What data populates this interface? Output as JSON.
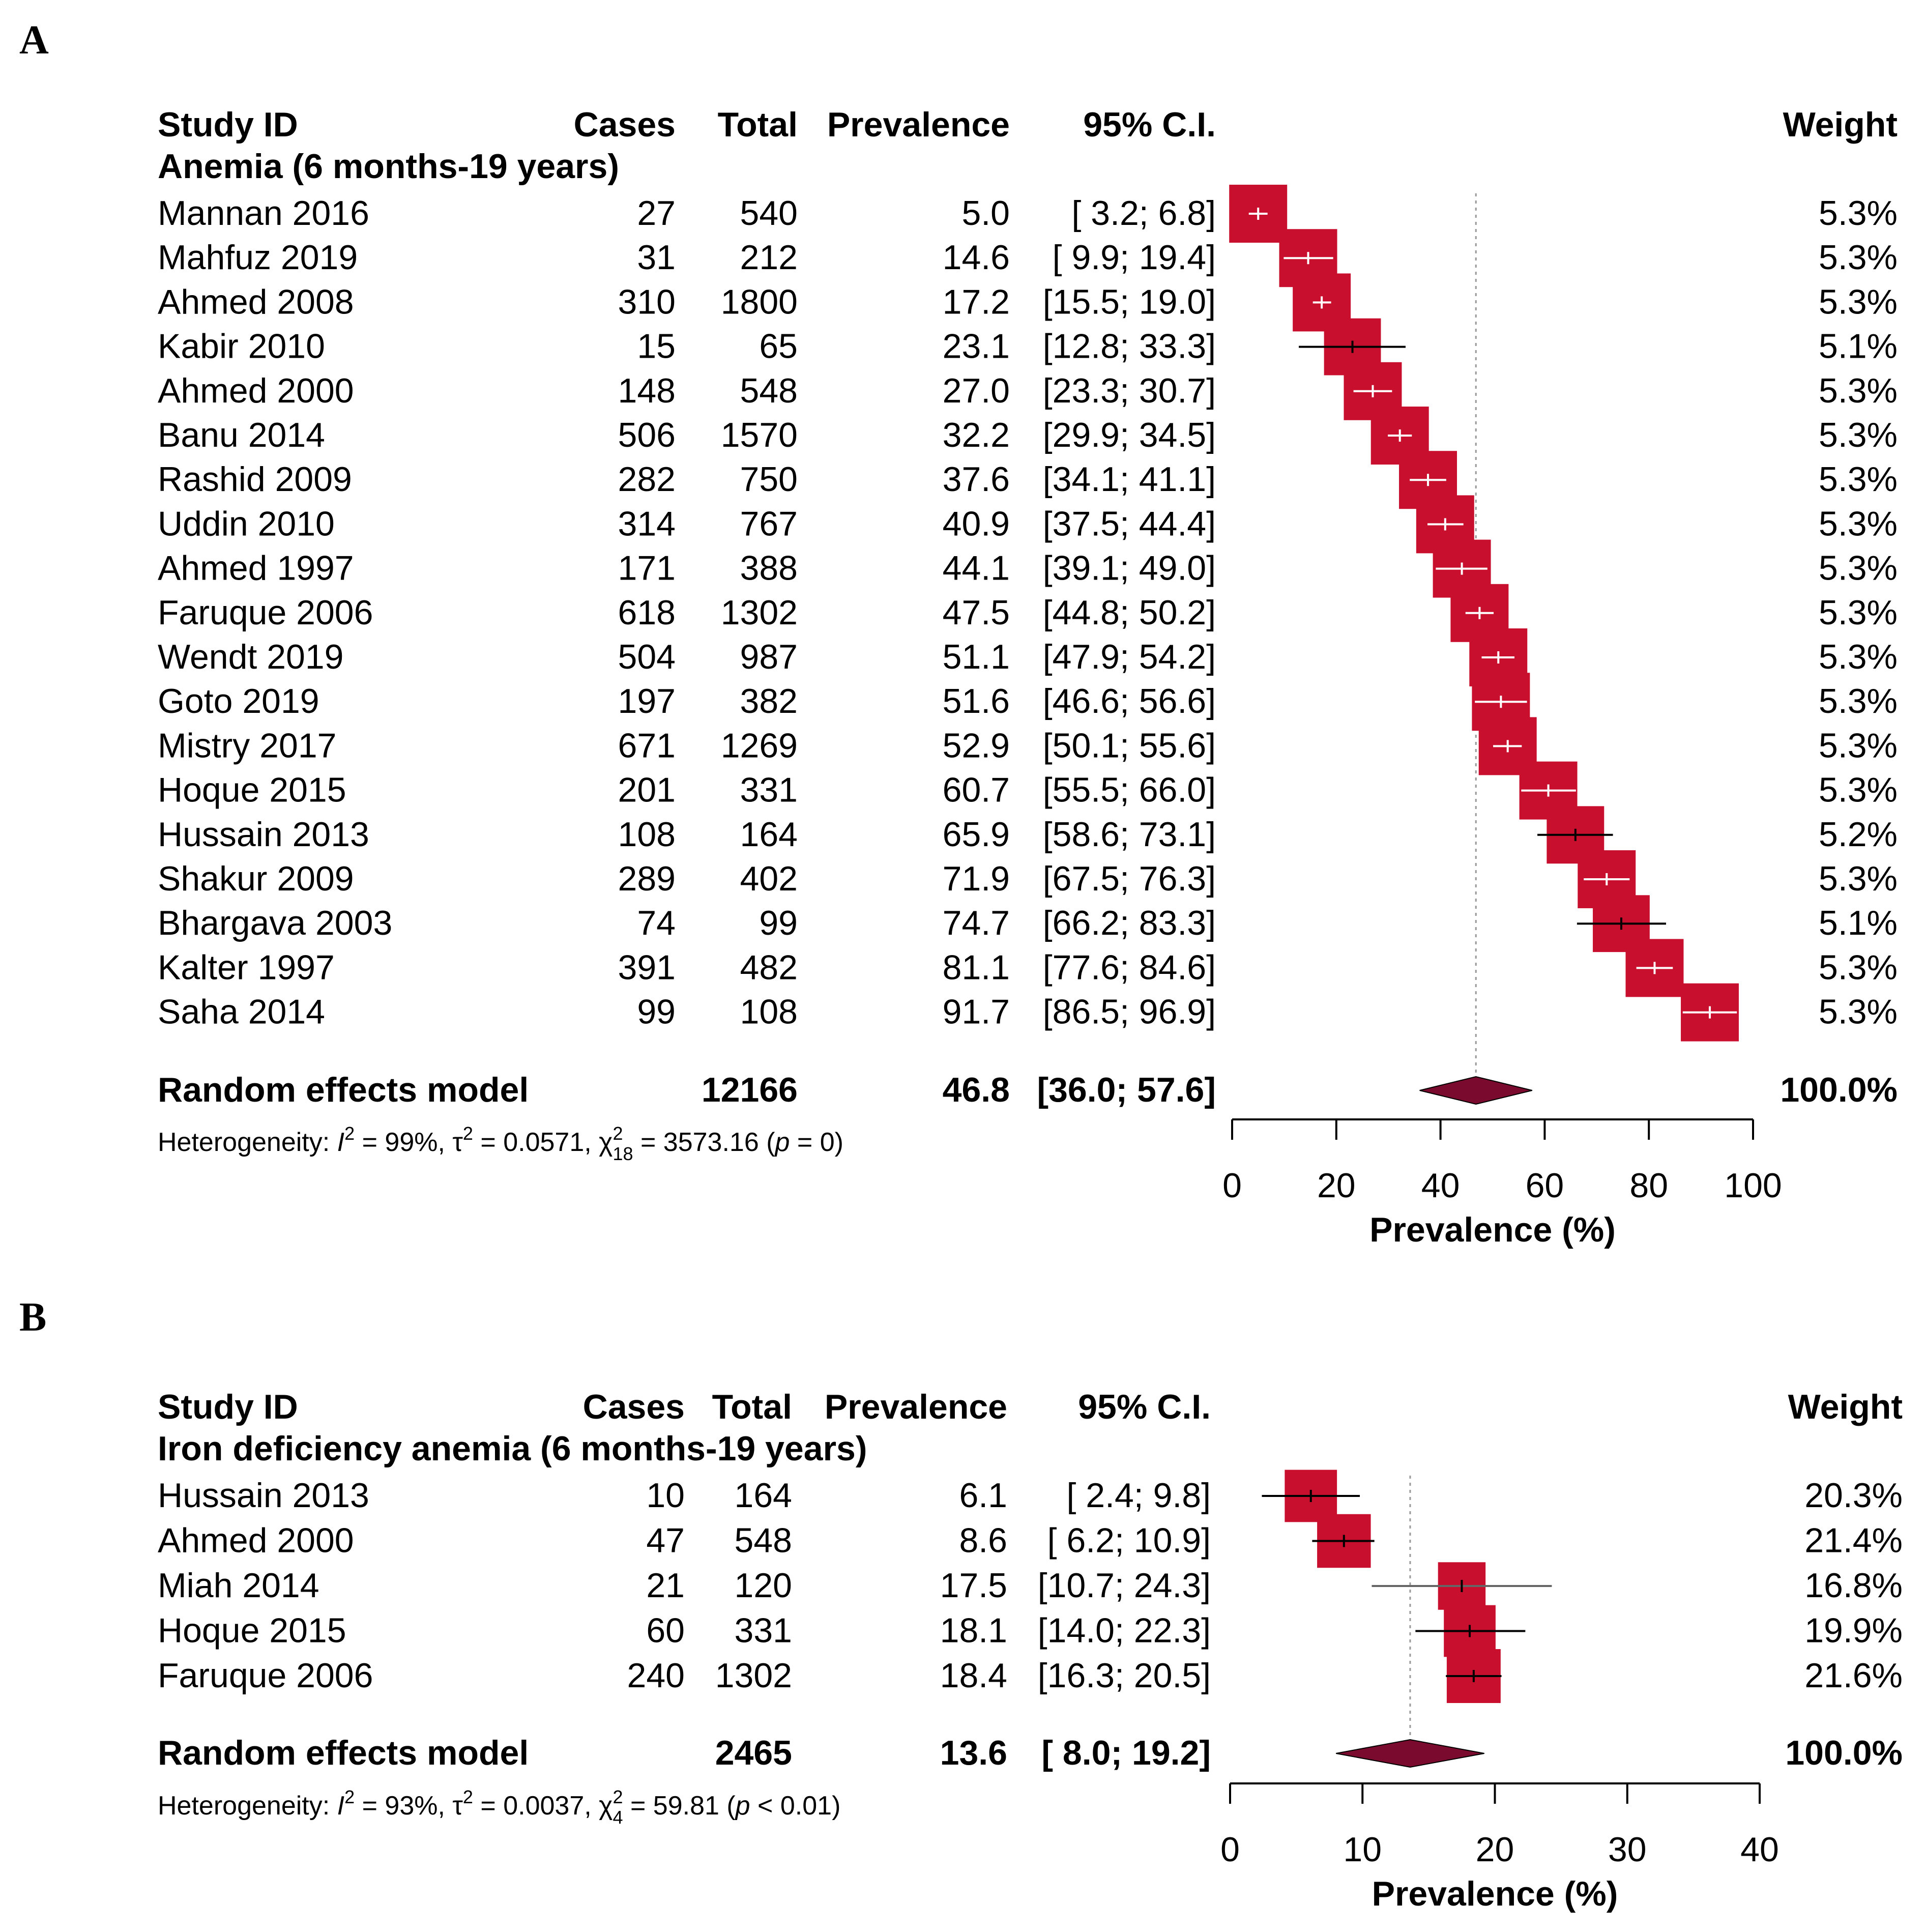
{
  "chart_data": [
    {
      "type": "forest",
      "panel_label": "A",
      "headers": {
        "study": "Study ID",
        "cases": "Cases",
        "total": "Total",
        "prevalence": "Prevalence",
        "ci": "95% C.I.",
        "weight": "Weight"
      },
      "subgroup_title": "Anemia (6 months-19 years)",
      "studies": [
        {
          "study": "Mannan 2016",
          "cases": "27",
          "total": "540",
          "prevalence": "5.0",
          "ci": "[ 3.2;  6.8]",
          "est": 5.0,
          "lo": 3.2,
          "hi": 6.8,
          "weight": "5.3%",
          "w": 5.3
        },
        {
          "study": "Mahfuz 2019",
          "cases": "31",
          "total": "212",
          "prevalence": "14.6",
          "ci": "[ 9.9; 19.4]",
          "est": 14.6,
          "lo": 9.9,
          "hi": 19.4,
          "weight": "5.3%",
          "w": 5.3
        },
        {
          "study": "Ahmed 2008",
          "cases": "310",
          "total": "1800",
          "prevalence": "17.2",
          "ci": "[15.5; 19.0]",
          "est": 17.2,
          "lo": 15.5,
          "hi": 19.0,
          "weight": "5.3%",
          "w": 5.3
        },
        {
          "study": "Kabir 2010",
          "cases": "15",
          "total": "65",
          "prevalence": "23.1",
          "ci": "[12.8; 33.3]",
          "est": 23.1,
          "lo": 12.8,
          "hi": 33.3,
          "weight": "5.1%",
          "w": 5.1
        },
        {
          "study": "Ahmed 2000",
          "cases": "148",
          "total": "548",
          "prevalence": "27.0",
          "ci": "[23.3; 30.7]",
          "est": 27.0,
          "lo": 23.3,
          "hi": 30.7,
          "weight": "5.3%",
          "w": 5.3
        },
        {
          "study": "Banu 2014",
          "cases": "506",
          "total": "1570",
          "prevalence": "32.2",
          "ci": "[29.9; 34.5]",
          "est": 32.2,
          "lo": 29.9,
          "hi": 34.5,
          "weight": "5.3%",
          "w": 5.3
        },
        {
          "study": "Rashid 2009",
          "cases": "282",
          "total": "750",
          "prevalence": "37.6",
          "ci": "[34.1; 41.1]",
          "est": 37.6,
          "lo": 34.1,
          "hi": 41.1,
          "weight": "5.3%",
          "w": 5.3
        },
        {
          "study": "Uddin 2010",
          "cases": "314",
          "total": "767",
          "prevalence": "40.9",
          "ci": "[37.5; 44.4]",
          "est": 40.9,
          "lo": 37.5,
          "hi": 44.4,
          "weight": "5.3%",
          "w": 5.3
        },
        {
          "study": "Ahmed 1997",
          "cases": "171",
          "total": "388",
          "prevalence": "44.1",
          "ci": "[39.1; 49.0]",
          "est": 44.1,
          "lo": 39.1,
          "hi": 49.0,
          "weight": "5.3%",
          "w": 5.3
        },
        {
          "study": "Faruque 2006",
          "cases": "618",
          "total": "1302",
          "prevalence": "47.5",
          "ci": "[44.8; 50.2]",
          "est": 47.5,
          "lo": 44.8,
          "hi": 50.2,
          "weight": "5.3%",
          "w": 5.3
        },
        {
          "study": "Wendt 2019",
          "cases": "504",
          "total": "987",
          "prevalence": "51.1",
          "ci": "[47.9; 54.2]",
          "est": 51.1,
          "lo": 47.9,
          "hi": 54.2,
          "weight": "5.3%",
          "w": 5.3
        },
        {
          "study": "Goto 2019",
          "cases": "197",
          "total": "382",
          "prevalence": "51.6",
          "ci": "[46.6; 56.6]",
          "est": 51.6,
          "lo": 46.6,
          "hi": 56.6,
          "weight": "5.3%",
          "w": 5.3
        },
        {
          "study": "Mistry 2017",
          "cases": "671",
          "total": "1269",
          "prevalence": "52.9",
          "ci": "[50.1; 55.6]",
          "est": 52.9,
          "lo": 50.1,
          "hi": 55.6,
          "weight": "5.3%",
          "w": 5.3
        },
        {
          "study": "Hoque 2015",
          "cases": "201",
          "total": "331",
          "prevalence": "60.7",
          "ci": "[55.5; 66.0]",
          "est": 60.7,
          "lo": 55.5,
          "hi": 66.0,
          "weight": "5.3%",
          "w": 5.3
        },
        {
          "study": "Hussain 2013",
          "cases": "108",
          "total": "164",
          "prevalence": "65.9",
          "ci": "[58.6; 73.1]",
          "est": 65.9,
          "lo": 58.6,
          "hi": 73.1,
          "weight": "5.2%",
          "w": 5.2
        },
        {
          "study": "Shakur 2009",
          "cases": "289",
          "total": "402",
          "prevalence": "71.9",
          "ci": "[67.5; 76.3]",
          "est": 71.9,
          "lo": 67.5,
          "hi": 76.3,
          "weight": "5.3%",
          "w": 5.3
        },
        {
          "study": "Bhargava 2003",
          "cases": "74",
          "total": "99",
          "prevalence": "74.7",
          "ci": "[66.2; 83.3]",
          "est": 74.7,
          "lo": 66.2,
          "hi": 83.3,
          "weight": "5.1%",
          "w": 5.1
        },
        {
          "study": "Kalter 1997",
          "cases": "391",
          "total": "482",
          "prevalence": "81.1",
          "ci": "[77.6; 84.6]",
          "est": 81.1,
          "lo": 77.6,
          "hi": 84.6,
          "weight": "5.3%",
          "w": 5.3
        },
        {
          "study": "Saha 2014",
          "cases": "99",
          "total": "108",
          "prevalence": "91.7",
          "ci": "[86.5; 96.9]",
          "est": 91.7,
          "lo": 86.5,
          "hi": 96.9,
          "weight": "5.3%",
          "w": 5.3
        }
      ],
      "pooled": {
        "label": "Random effects model",
        "total": "12166",
        "prevalence": "46.8",
        "ci": "[36.0; 57.6]",
        "est": 46.8,
        "lo": 36.0,
        "hi": 57.6,
        "weight": "100.0%"
      },
      "heterogeneity": {
        "prefix": "Heterogeneity: ",
        "i2_label": "I",
        "i2_value": " = 99%, ",
        "tau2_label": "τ",
        "tau2_value": " = 0.0571, ",
        "chi2_label": "χ",
        "chi2_df": "18",
        "chi2_value": " = 3573.16 (",
        "p_label": "p",
        "p_value": " = 0)"
      },
      "xlim": [
        0,
        100
      ],
      "ticks": [
        0,
        20,
        40,
        60,
        80,
        100
      ],
      "xlabel": "Prevalence (%)"
    },
    {
      "type": "forest",
      "panel_label": "B",
      "headers": {
        "study": "Study ID",
        "cases": "Cases",
        "total": "Total",
        "prevalence": "Prevalence",
        "ci": "95% C.I.",
        "weight": "Weight"
      },
      "subgroup_title": "Iron deficiency anemia (6 months-19 years)",
      "studies": [
        {
          "study": "Hussain 2013",
          "cases": "10",
          "total": "164",
          "prevalence": "6.1",
          "ci": "[ 2.4;  9.8]",
          "est": 6.1,
          "lo": 2.4,
          "hi": 9.8,
          "weight": "20.3%",
          "w": 20.3
        },
        {
          "study": "Ahmed 2000",
          "cases": "47",
          "total": "548",
          "prevalence": "8.6",
          "ci": "[ 6.2; 10.9]",
          "est": 8.6,
          "lo": 6.2,
          "hi": 10.9,
          "weight": "21.4%",
          "w": 21.4
        },
        {
          "study": "Miah 2014",
          "cases": "21",
          "total": "120",
          "prevalence": "17.5",
          "ci": "[10.7; 24.3]",
          "est": 17.5,
          "lo": 10.7,
          "hi": 24.3,
          "weight": "16.8%",
          "w": 16.8
        },
        {
          "study": "Hoque 2015",
          "cases": "60",
          "total": "331",
          "prevalence": "18.1",
          "ci": "[14.0; 22.3]",
          "est": 18.1,
          "lo": 14.0,
          "hi": 22.3,
          "weight": "19.9%",
          "w": 19.9
        },
        {
          "study": "Faruque 2006",
          "cases": "240",
          "total": "1302",
          "prevalence": "18.4",
          "ci": "[16.3; 20.5]",
          "est": 18.4,
          "lo": 16.3,
          "hi": 20.5,
          "weight": "21.6%",
          "w": 21.6
        }
      ],
      "pooled": {
        "label": "Random effects model",
        "total": "2465",
        "prevalence": "13.6",
        "ci": "[ 8.0; 19.2]",
        "est": 13.6,
        "lo": 8.0,
        "hi": 19.2,
        "weight": "100.0%"
      },
      "heterogeneity": {
        "prefix": "Heterogeneity: ",
        "i2_label": "I",
        "i2_value": " = 93%, ",
        "tau2_label": "τ",
        "tau2_value": " = 0.0037, ",
        "chi2_label": "χ",
        "chi2_df": "4",
        "chi2_value": " = 59.81 (",
        "p_label": "p",
        "p_value": " < 0.01)"
      },
      "xlim": [
        0,
        40
      ],
      "ticks": [
        0,
        10,
        20,
        30,
        40
      ],
      "xlabel": "Prevalence (%)"
    }
  ],
  "colors": {
    "square": "#c8102e",
    "diamond": "#7a0a2e",
    "ci_line": "#000000",
    "ci_line_light": "#666666",
    "ref_line": "#999999"
  }
}
